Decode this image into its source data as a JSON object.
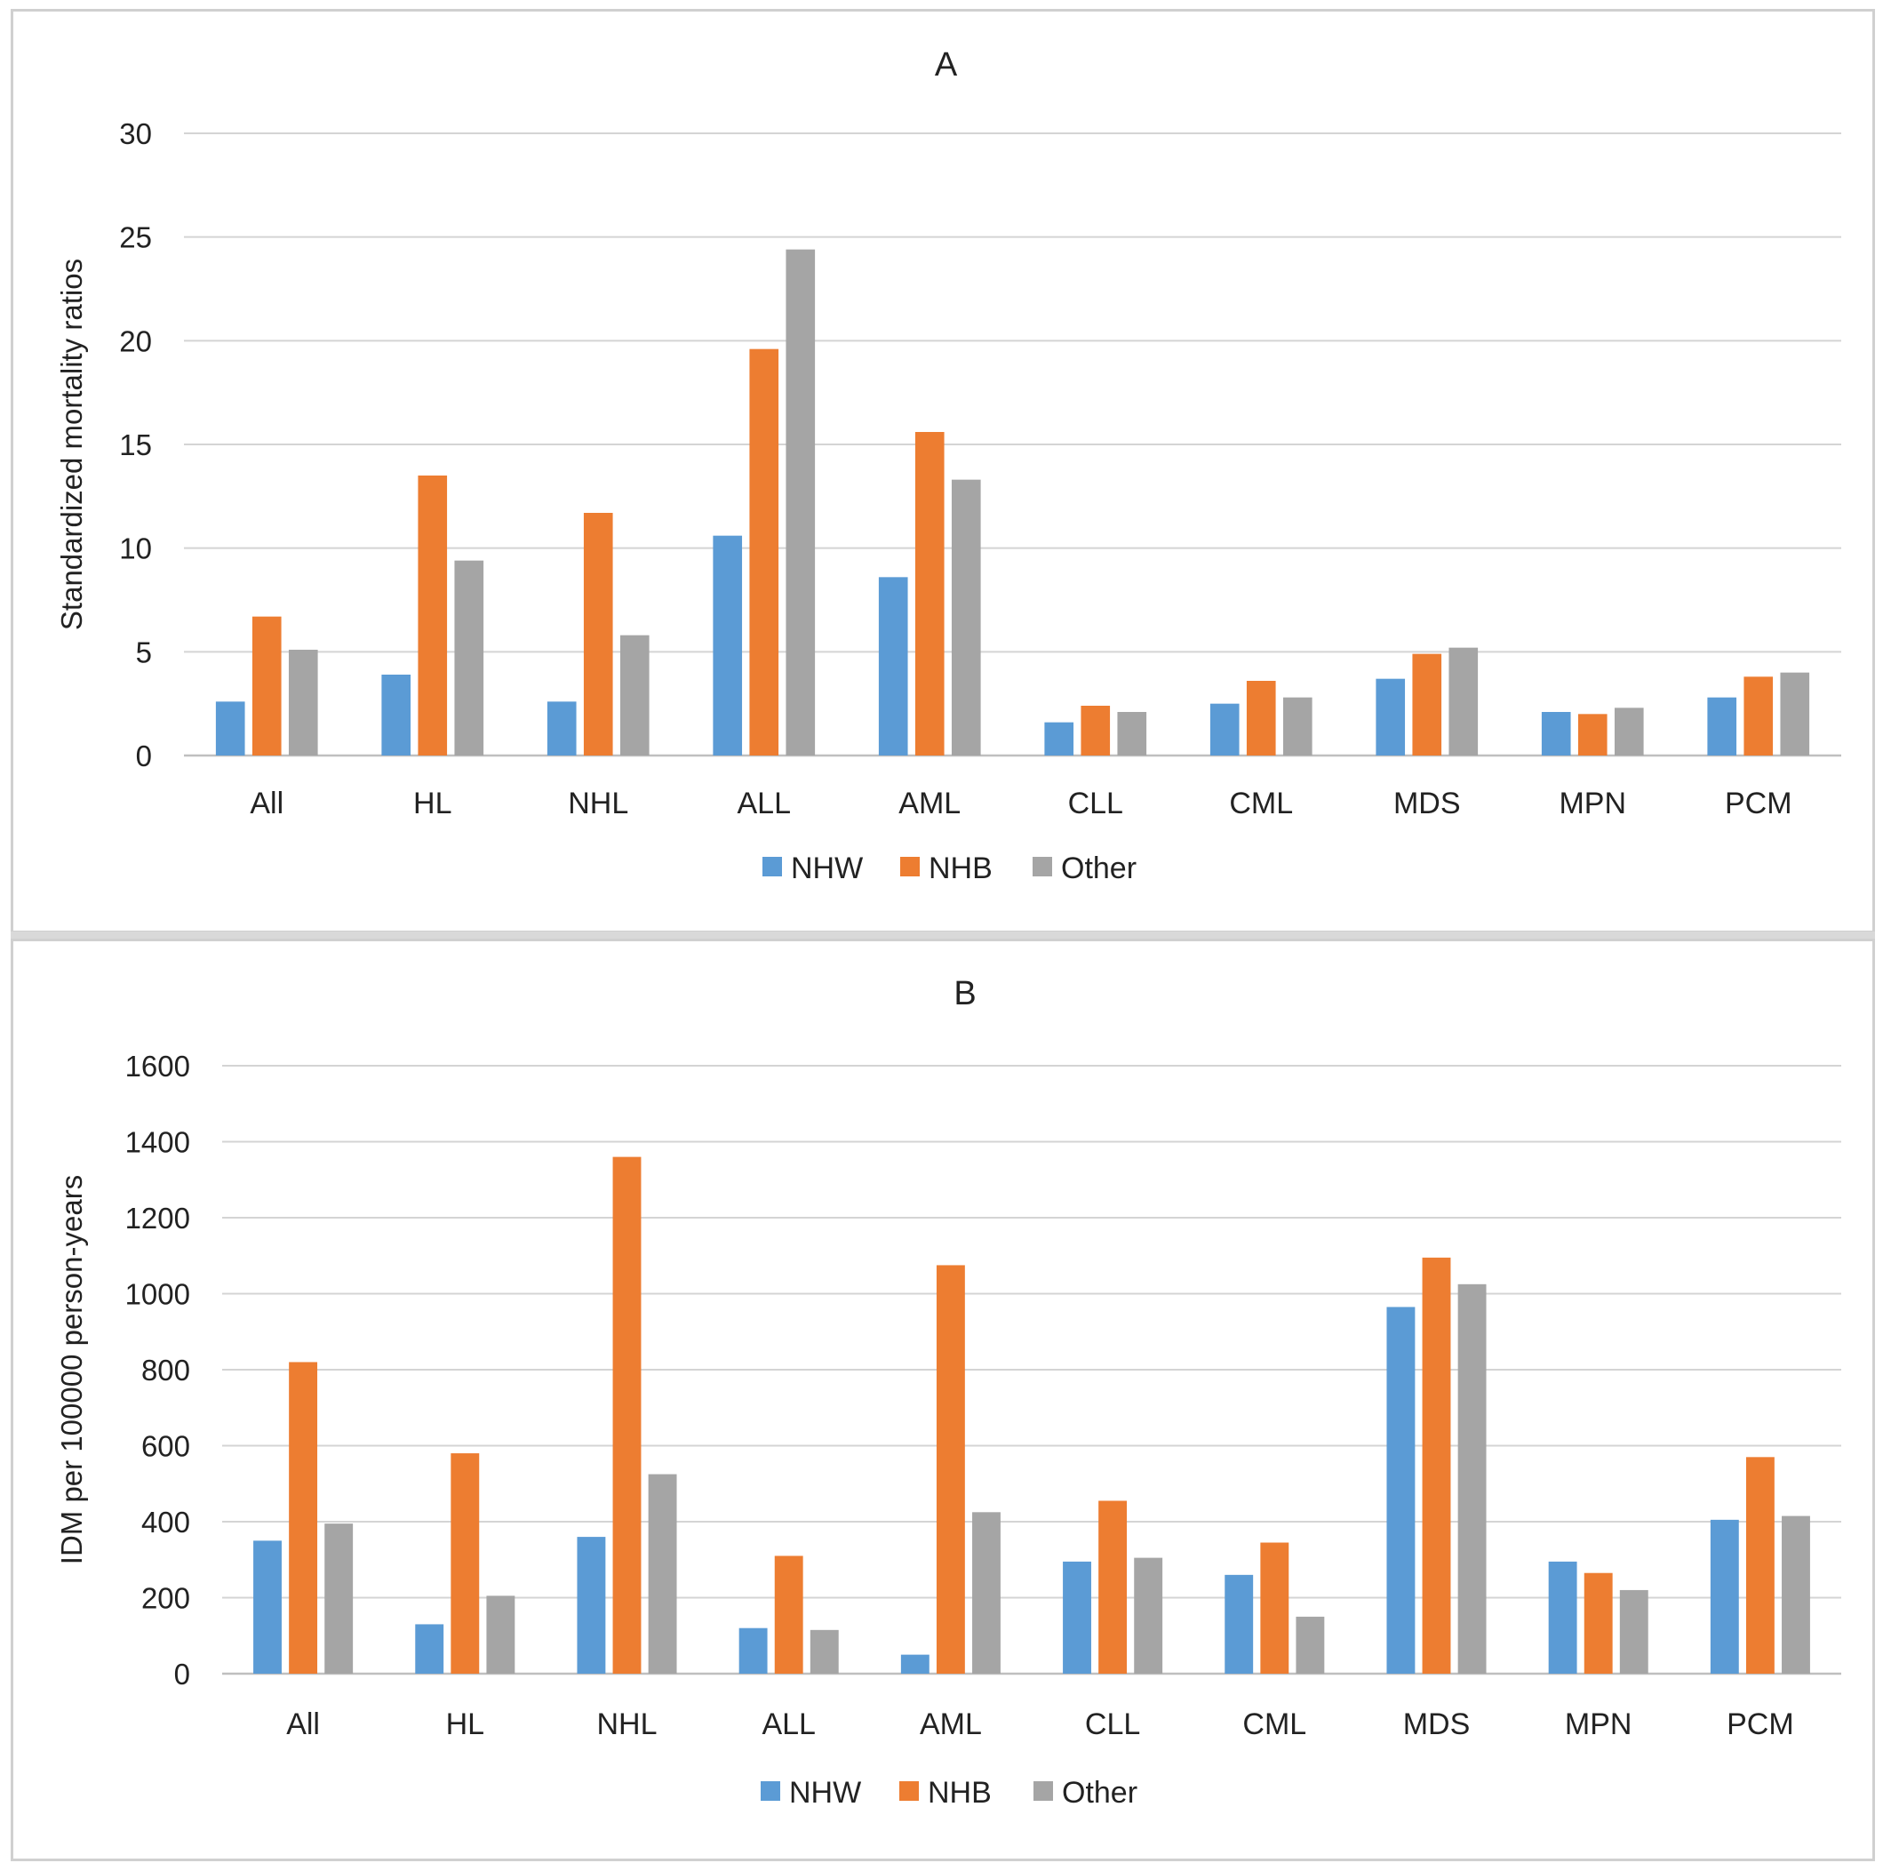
{
  "chart_data": [
    {
      "type": "bar",
      "title": "A",
      "ylabel": "Standardized mortality ratios",
      "xlabel": "",
      "ylim": [
        0,
        30
      ],
      "yticks": [
        0,
        5,
        10,
        15,
        20,
        25,
        30
      ],
      "categories": [
        "All",
        "HL",
        "NHL",
        "ALL",
        "AML",
        "CLL",
        "CML",
        "MDS",
        "MPN",
        "PCM"
      ],
      "series": [
        {
          "name": "NHW",
          "color": "#5b9bd5",
          "values": [
            2.6,
            3.9,
            2.6,
            10.6,
            8.6,
            1.6,
            2.5,
            3.7,
            2.1,
            2.8
          ]
        },
        {
          "name": "NHB",
          "color": "#ed7d31",
          "values": [
            6.7,
            13.5,
            11.7,
            19.6,
            15.6,
            2.4,
            3.6,
            4.9,
            2.0,
            3.8
          ]
        },
        {
          "name": "Other",
          "color": "#a5a5a5",
          "values": [
            5.1,
            9.4,
            5.8,
            24.4,
            13.3,
            2.1,
            2.8,
            5.2,
            2.3,
            4.0
          ]
        }
      ],
      "grid": true,
      "legend_position": "bottom"
    },
    {
      "type": "bar",
      "title": "B",
      "ylabel": "IDM per 100000 person-years",
      "xlabel": "",
      "ylim": [
        0,
        1600
      ],
      "yticks": [
        0,
        200,
        400,
        600,
        800,
        1000,
        1200,
        1400,
        1600
      ],
      "categories": [
        "All",
        "HL",
        "NHL",
        "ALL",
        "AML",
        "CLL",
        "CML",
        "MDS",
        "MPN",
        "PCM"
      ],
      "series": [
        {
          "name": "NHW",
          "color": "#5b9bd5",
          "values": [
            350,
            130,
            360,
            120,
            50,
            295,
            260,
            965,
            295,
            405
          ]
        },
        {
          "name": "NHB",
          "color": "#ed7d31",
          "values": [
            820,
            580,
            1360,
            310,
            1075,
            455,
            345,
            1095,
            265,
            570
          ]
        },
        {
          "name": "Other",
          "color": "#a5a5a5",
          "values": [
            395,
            205,
            525,
            115,
            425,
            305,
            150,
            1025,
            220,
            415
          ]
        }
      ],
      "grid": true,
      "legend_position": "bottom"
    }
  ]
}
